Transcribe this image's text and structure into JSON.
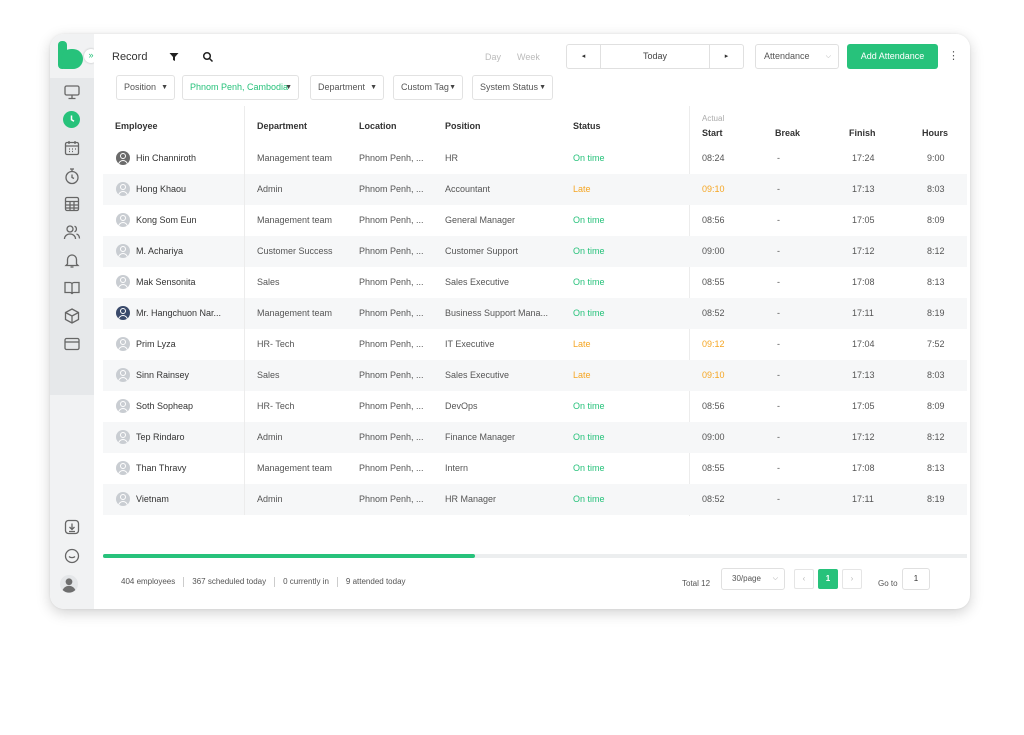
{
  "window": {
    "expand_glyph": "»"
  },
  "sidebar": {
    "items": [
      {
        "icon": "monitor-icon"
      },
      {
        "icon": "clock-icon",
        "active": true
      },
      {
        "icon": "calendar-icon"
      },
      {
        "icon": "stopwatch-icon"
      },
      {
        "icon": "spreadsheet-icon"
      },
      {
        "icon": "users-icon"
      },
      {
        "icon": "bell-icon"
      },
      {
        "icon": "book-icon"
      },
      {
        "icon": "cube-icon"
      },
      {
        "icon": "card-icon"
      }
    ],
    "bottom": [
      {
        "icon": "download-icon"
      },
      {
        "icon": "chat-icon"
      },
      {
        "icon": "profile-avatar"
      }
    ]
  },
  "toolbar": {
    "record_label": "Record",
    "day_label": "Day",
    "week_label": "Week",
    "prev_glyph": "◂",
    "today_label": "Today",
    "next_glyph": "▸",
    "view_select": "Attendance",
    "add_button": "Add Attendance",
    "more_glyph": "⋮"
  },
  "filters": {
    "position": "Position",
    "location": "Phnom Penh, Cambodia",
    "department": "Department",
    "custom_tag": "Custom Tag",
    "system_status": "System Status"
  },
  "table": {
    "headers": {
      "employee": "Employee",
      "department": "Department",
      "location": "Location",
      "position": "Position",
      "status": "Status",
      "actual": "Actual",
      "start": "Start",
      "break": "Break",
      "finish": "Finish",
      "hours": "Hours"
    },
    "rows": [
      {
        "employee": "Hin Channiroth",
        "department": "Management team",
        "location": "Phnom Penh, ...",
        "position": "HR",
        "status": "On time",
        "start": "08:24",
        "break": "-",
        "finish": "17:24",
        "hours": "9:00"
      },
      {
        "employee": "Hong Khaou",
        "department": "Admin",
        "location": "Phnom Penh, ...",
        "position": "Accountant",
        "status": "Late",
        "start": "09:10",
        "break": "-",
        "finish": "17:13",
        "hours": "8:03"
      },
      {
        "employee": "Kong Som Eun",
        "department": "Management team",
        "location": "Phnom Penh, ...",
        "position": "General Manager",
        "status": "On time",
        "start": "08:56",
        "break": "-",
        "finish": "17:05",
        "hours": "8:09"
      },
      {
        "employee": "M. Achariya",
        "department": "Customer Success",
        "location": "Phnom Penh, ...",
        "position": "Customer Support",
        "status": "On time",
        "start": "09:00",
        "break": "-",
        "finish": "17:12",
        "hours": "8:12"
      },
      {
        "employee": "Mak Sensonita",
        "department": "Sales",
        "location": "Phnom Penh, ...",
        "position": "Sales Executive",
        "status": "On time",
        "start": "08:55",
        "break": "-",
        "finish": "17:08",
        "hours": "8:13"
      },
      {
        "employee": "Mr. Hangchuon Nar...",
        "department": "Management team",
        "location": "Phnom Penh, ...",
        "position": "Business Support Mana...",
        "status": "On time",
        "start": "08:52",
        "break": "-",
        "finish": "17:11",
        "hours": "8:19"
      },
      {
        "employee": "Prim Lyza",
        "department": "HR- Tech",
        "location": "Phnom Penh, ...",
        "position": "IT Executive",
        "status": "Late",
        "start": "09:12",
        "break": "-",
        "finish": "17:04",
        "hours": "7:52"
      },
      {
        "employee": "Sinn Rainsey",
        "department": "Sales",
        "location": "Phnom Penh, ...",
        "position": "Sales Executive",
        "status": "Late",
        "start": "09:10",
        "break": "-",
        "finish": "17:13",
        "hours": "8:03"
      },
      {
        "employee": "Soth Sopheap",
        "department": "HR- Tech",
        "location": "Phnom Penh, ...",
        "position": "DevOps",
        "status": "On time",
        "start": "08:56",
        "break": "-",
        "finish": "17:05",
        "hours": "8:09"
      },
      {
        "employee": "Tep Rindaro",
        "department": "Admin",
        "location": "Phnom Penh, ...",
        "position": "Finance Manager",
        "status": "On time",
        "start": "09:00",
        "break": "-",
        "finish": "17:12",
        "hours": "8:12"
      },
      {
        "employee": "Than Thravy",
        "department": "Management team",
        "location": "Phnom Penh, ...",
        "position": "Intern",
        "status": "On time",
        "start": "08:55",
        "break": "-",
        "finish": "17:08",
        "hours": "8:13"
      },
      {
        "employee": "Vietnam",
        "department": "Admin",
        "location": "Phnom Penh, ...",
        "position": "HR Manager",
        "status": "On time",
        "start": "08:52",
        "break": "-",
        "finish": "17:11",
        "hours": "8:19"
      }
    ]
  },
  "footer": {
    "employees": "404 employees",
    "scheduled": "367 scheduled today",
    "currently_in": "0 currently in",
    "attended": "9 attended today",
    "total": "Total 12",
    "per_page": "30/page",
    "prev_glyph": "‹",
    "current_page": "1",
    "next_glyph": "›",
    "goto_label": "Go to",
    "goto_value": "1"
  },
  "colors": {
    "accent": "#27c27b",
    "late": "#f5a623"
  },
  "scroll": {
    "horizontal_position": 0.43
  }
}
